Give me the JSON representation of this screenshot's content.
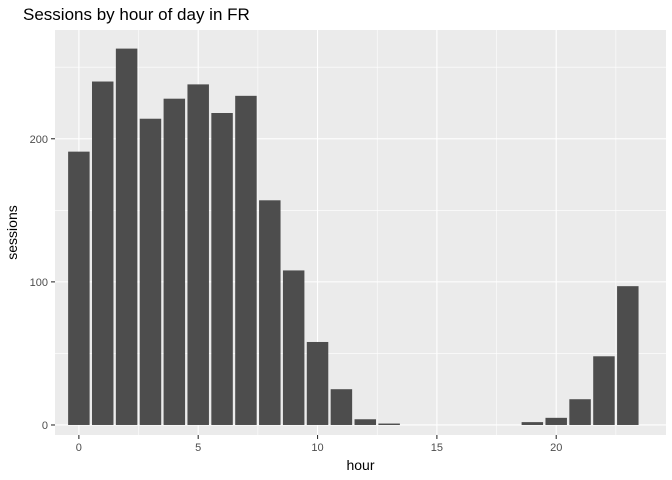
{
  "chart_data": {
    "type": "bar",
    "title": "Sessions by hour of day in FR",
    "xlabel": "hour",
    "ylabel": "sessions",
    "x": [
      0,
      1,
      2,
      3,
      4,
      5,
      6,
      7,
      8,
      9,
      10,
      11,
      12,
      13,
      14,
      15,
      16,
      17,
      18,
      19,
      20,
      21,
      22,
      23
    ],
    "values": [
      191,
      240,
      263,
      214,
      228,
      238,
      218,
      230,
      157,
      108,
      58,
      25,
      4,
      1,
      0,
      0,
      0,
      0,
      0,
      2,
      5,
      18,
      48,
      97
    ],
    "xlim": [
      -1,
      24.6
    ],
    "ylim": [
      -7,
      276
    ],
    "xticks": [
      0,
      5,
      10,
      15,
      20
    ],
    "yticks": [
      0,
      100,
      200
    ],
    "grid": true,
    "colors": {
      "bar": "#4d4d4d",
      "panel": "#ebebeb",
      "grid_major": "#ffffff"
    }
  }
}
